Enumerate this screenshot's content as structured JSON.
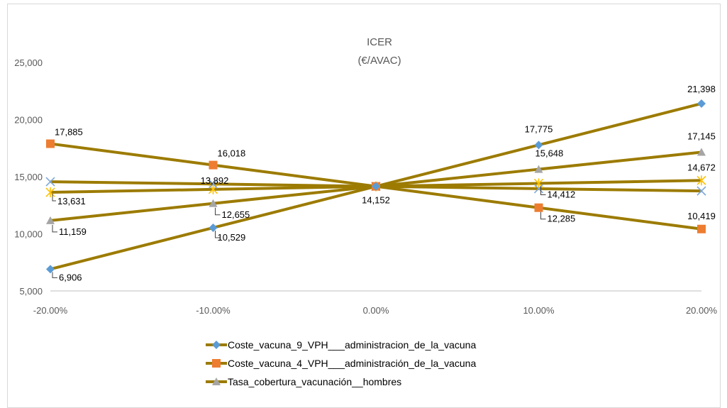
{
  "chart_data": {
    "type": "line",
    "title": "ICER",
    "subtitle": "(€/AVAC)",
    "x": [
      -20,
      -10,
      0,
      10,
      20
    ],
    "x_tick_labels": [
      "-20.00%",
      "-10.00%",
      "0.00%",
      "10.00%",
      "20.00%"
    ],
    "ylim": [
      5000,
      25000
    ],
    "y_ticks": [
      5000,
      10000,
      15000,
      20000,
      25000
    ],
    "y_tick_labels": [
      "5,000",
      "10,000",
      "15,000",
      "20,000",
      "25,000"
    ],
    "grid": false,
    "legend_position": "bottom",
    "line_color": "#9c7b00",
    "series": [
      {
        "name": "Coste_vacuna_9_VPH___administracion_de_la_vacuna",
        "marker": "diamond",
        "marker_color": "#5b9bd5",
        "values": [
          6906,
          10529,
          14152,
          17775,
          21398
        ],
        "labels": [
          "6,906",
          "10,529",
          "14,152",
          "17,775",
          "21,398"
        ],
        "in_legend": true
      },
      {
        "name": "Coste_vacuna_4_VPH___administración_de_la_vacuna",
        "marker": "square",
        "marker_color": "#ed7d31",
        "values": [
          17885,
          16018,
          14152,
          12285,
          10419
        ],
        "labels": [
          "17,885",
          "16,018",
          "",
          "12,285",
          "10,419"
        ],
        "in_legend": true
      },
      {
        "name": "Tasa_cobertura_vacunación__hombres",
        "marker": "triangle",
        "marker_color": "#a5a5a5",
        "values": [
          11159,
          12655,
          14152,
          15648,
          17145
        ],
        "labels": [
          "11,159",
          "12,655",
          "",
          "15,648",
          "17,145"
        ],
        "in_legend": true
      },
      {
        "name": "",
        "marker": "x",
        "marker_color": "#7fa7d8",
        "values": [
          14560,
          14360,
          14152,
          13950,
          13750
        ],
        "labels": [
          "",
          "",
          "",
          "",
          ""
        ],
        "in_legend": false
      },
      {
        "name": "",
        "marker": "star",
        "marker_color": "#ffc000",
        "values": [
          13631,
          13892,
          14152,
          14412,
          14672
        ],
        "labels": [
          "13,631",
          "13,892",
          "",
          "14,412",
          "14,672"
        ],
        "in_legend": false
      }
    ]
  }
}
